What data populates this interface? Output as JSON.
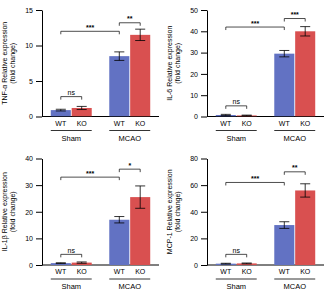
{
  "chart_data": [
    {
      "type": "bar",
      "ylabel": "TNF-α Relative expression\n(fold change)",
      "categories": [
        "WT",
        "KO",
        "WT",
        "KO"
      ],
      "group_labels": [
        "Sham",
        "MCAO"
      ],
      "values": [
        0.9,
        1.2,
        8.5,
        11.5
      ],
      "errors": [
        0.12,
        0.22,
        0.6,
        0.8
      ],
      "colors": [
        "#6272c3",
        "#d95050",
        "#6272c3",
        "#d95050"
      ],
      "ylim": [
        0,
        15
      ],
      "yticks": [
        0,
        5,
        10,
        15
      ],
      "annotations": [
        {
          "text": "ns",
          "from": 0,
          "to": 1,
          "y": 2.8
        },
        {
          "text": "***",
          "from": 0,
          "to": 2,
          "y": 12.0
        },
        {
          "text": "**",
          "from": 2,
          "to": 3,
          "y": 13.2
        }
      ]
    },
    {
      "type": "bar",
      "ylabel": "IL-6 Relative expression\n(fold change)",
      "categories": [
        "WT",
        "KO",
        "WT",
        "KO"
      ],
      "group_labels": [
        "Sham",
        "MCAO"
      ],
      "values": [
        0.7,
        0.5,
        29.5,
        40.0
      ],
      "errors": [
        0.3,
        0.15,
        1.5,
        2.2
      ],
      "colors": [
        "#6272c3",
        "#d95050",
        "#6272c3",
        "#d95050"
      ],
      "ylim": [
        0,
        50
      ],
      "yticks": [
        0,
        10,
        20,
        30,
        40,
        50
      ],
      "annotations": [
        {
          "text": "ns",
          "from": 0,
          "to": 1,
          "y": 5
        },
        {
          "text": "***",
          "from": 0,
          "to": 2,
          "y": 42
        },
        {
          "text": "***",
          "from": 2,
          "to": 3,
          "y": 46
        }
      ]
    },
    {
      "type": "bar",
      "ylabel": "IL-1β Relative expression\n(fold change)",
      "categories": [
        "WT",
        "KO",
        "WT",
        "KO"
      ],
      "group_labels": [
        "Sham",
        "MCAO"
      ],
      "values": [
        0.7,
        0.9,
        17.0,
        25.5
      ],
      "errors": [
        0.15,
        0.25,
        1.2,
        4.2
      ],
      "colors": [
        "#6272c3",
        "#d95050",
        "#6272c3",
        "#d95050"
      ],
      "ylim": [
        0,
        40
      ],
      "yticks": [
        0,
        10,
        20,
        30,
        40
      ],
      "annotations": [
        {
          "text": "ns",
          "from": 0,
          "to": 1,
          "y": 4.0
        },
        {
          "text": "***",
          "from": 0,
          "to": 2,
          "y": 33.0
        },
        {
          "text": "*",
          "from": 2,
          "to": 3,
          "y": 36.0
        }
      ]
    },
    {
      "type": "bar",
      "ylabel": "MCP-1 Relative expression\n(fold change)",
      "categories": [
        "WT",
        "KO",
        "WT",
        "KO"
      ],
      "group_labels": [
        "Sham",
        "MCAO"
      ],
      "values": [
        1.0,
        1.2,
        30.0,
        56.0
      ],
      "errors": [
        0.3,
        0.3,
        2.5,
        5.0
      ],
      "colors": [
        "#6272c3",
        "#d95050",
        "#6272c3",
        "#d95050"
      ],
      "ylim": [
        0,
        80
      ],
      "yticks": [
        0,
        20,
        40,
        60,
        80
      ],
      "annotations": [
        {
          "text": "ns",
          "from": 0,
          "to": 1,
          "y": 8
        },
        {
          "text": "***",
          "from": 0,
          "to": 2,
          "y": 62
        },
        {
          "text": "**",
          "from": 2,
          "to": 3,
          "y": 70
        }
      ]
    }
  ]
}
